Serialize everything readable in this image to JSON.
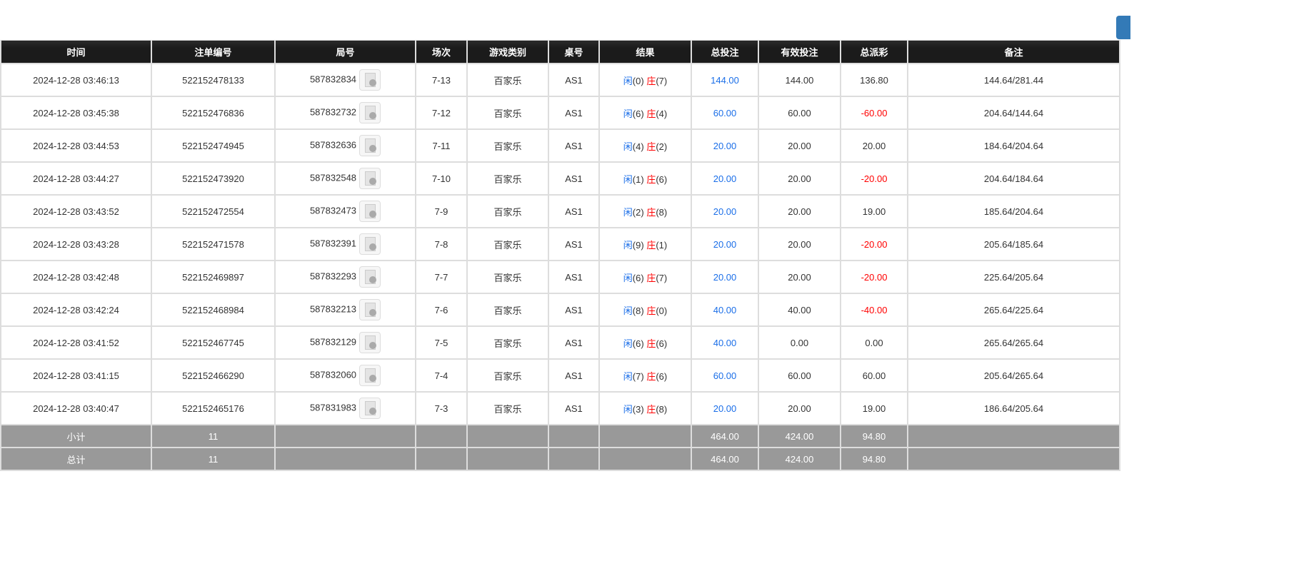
{
  "headers": [
    "时间",
    "注单编号",
    "局号",
    "场次",
    "游戏类别",
    "桌号",
    "结果",
    "总投注",
    "有效投注",
    "总派彩",
    "备注"
  ],
  "colors": {
    "player": "#1a6ee8",
    "banker": "#ff0000",
    "negative": "#ff0000",
    "bet": "#1a6ee8",
    "button": "#337ab7"
  },
  "rows": [
    {
      "time": "2024-12-28 03:46:13",
      "bet_id": "522152478133",
      "round": "587832834",
      "shoe": "7-13",
      "game": "百家乐",
      "table": "AS1",
      "player_label": "闲",
      "player": "(0)",
      "banker_label": "庄",
      "banker": "(7)",
      "total": "144.00",
      "valid": "144.00",
      "payout": "136.80",
      "payout_neg": false,
      "note": "144.64/281.44"
    },
    {
      "time": "2024-12-28 03:45:38",
      "bet_id": "522152476836",
      "round": "587832732",
      "shoe": "7-12",
      "game": "百家乐",
      "table": "AS1",
      "player_label": "闲",
      "player": "(6)",
      "banker_label": "庄",
      "banker": "(4)",
      "total": "60.00",
      "valid": "60.00",
      "payout": "-60.00",
      "payout_neg": true,
      "note": "204.64/144.64"
    },
    {
      "time": "2024-12-28 03:44:53",
      "bet_id": "522152474945",
      "round": "587832636",
      "shoe": "7-11",
      "game": "百家乐",
      "table": "AS1",
      "player_label": "闲",
      "player": "(4)",
      "banker_label": "庄",
      "banker": "(2)",
      "total": "20.00",
      "valid": "20.00",
      "payout": "20.00",
      "payout_neg": false,
      "note": "184.64/204.64"
    },
    {
      "time": "2024-12-28 03:44:27",
      "bet_id": "522152473920",
      "round": "587832548",
      "shoe": "7-10",
      "game": "百家乐",
      "table": "AS1",
      "player_label": "闲",
      "player": "(1)",
      "banker_label": "庄",
      "banker": "(6)",
      "total": "20.00",
      "valid": "20.00",
      "payout": "-20.00",
      "payout_neg": true,
      "note": "204.64/184.64"
    },
    {
      "time": "2024-12-28 03:43:52",
      "bet_id": "522152472554",
      "round": "587832473",
      "shoe": "7-9",
      "game": "百家乐",
      "table": "AS1",
      "player_label": "闲",
      "player": "(2)",
      "banker_label": "庄",
      "banker": "(8)",
      "total": "20.00",
      "valid": "20.00",
      "payout": "19.00",
      "payout_neg": false,
      "note": "185.64/204.64"
    },
    {
      "time": "2024-12-28 03:43:28",
      "bet_id": "522152471578",
      "round": "587832391",
      "shoe": "7-8",
      "game": "百家乐",
      "table": "AS1",
      "player_label": "闲",
      "player": "(9)",
      "banker_label": "庄",
      "banker": "(1)",
      "total": "20.00",
      "valid": "20.00",
      "payout": "-20.00",
      "payout_neg": true,
      "note": "205.64/185.64"
    },
    {
      "time": "2024-12-28 03:42:48",
      "bet_id": "522152469897",
      "round": "587832293",
      "shoe": "7-7",
      "game": "百家乐",
      "table": "AS1",
      "player_label": "闲",
      "player": "(6)",
      "banker_label": "庄",
      "banker": "(7)",
      "total": "20.00",
      "valid": "20.00",
      "payout": "-20.00",
      "payout_neg": true,
      "note": "225.64/205.64"
    },
    {
      "time": "2024-12-28 03:42:24",
      "bet_id": "522152468984",
      "round": "587832213",
      "shoe": "7-6",
      "game": "百家乐",
      "table": "AS1",
      "player_label": "闲",
      "player": "(8)",
      "banker_label": "庄",
      "banker": "(0)",
      "total": "40.00",
      "valid": "40.00",
      "payout": "-40.00",
      "payout_neg": true,
      "note": "265.64/225.64"
    },
    {
      "time": "2024-12-28 03:41:52",
      "bet_id": "522152467745",
      "round": "587832129",
      "shoe": "7-5",
      "game": "百家乐",
      "table": "AS1",
      "player_label": "闲",
      "player": "(6)",
      "banker_label": "庄",
      "banker": "(6)",
      "total": "40.00",
      "valid": "0.00",
      "payout": "0.00",
      "payout_neg": false,
      "note": "265.64/265.64"
    },
    {
      "time": "2024-12-28 03:41:15",
      "bet_id": "522152466290",
      "round": "587832060",
      "shoe": "7-4",
      "game": "百家乐",
      "table": "AS1",
      "player_label": "闲",
      "player": "(7)",
      "banker_label": "庄",
      "banker": "(6)",
      "total": "60.00",
      "valid": "60.00",
      "payout": "60.00",
      "payout_neg": false,
      "note": "205.64/265.64"
    },
    {
      "time": "2024-12-28 03:40:47",
      "bet_id": "522152465176",
      "round": "587831983",
      "shoe": "7-3",
      "game": "百家乐",
      "table": "AS1",
      "player_label": "闲",
      "player": "(3)",
      "banker_label": "庄",
      "banker": "(8)",
      "total": "20.00",
      "valid": "20.00",
      "payout": "19.00",
      "payout_neg": false,
      "note": "186.64/205.64"
    }
  ],
  "subtotal": {
    "label": "小计",
    "count": "11",
    "total": "464.00",
    "valid": "424.00",
    "payout": "94.80"
  },
  "grandtotal": {
    "label": "总计",
    "count": "11",
    "total": "464.00",
    "valid": "424.00",
    "payout": "94.80"
  }
}
